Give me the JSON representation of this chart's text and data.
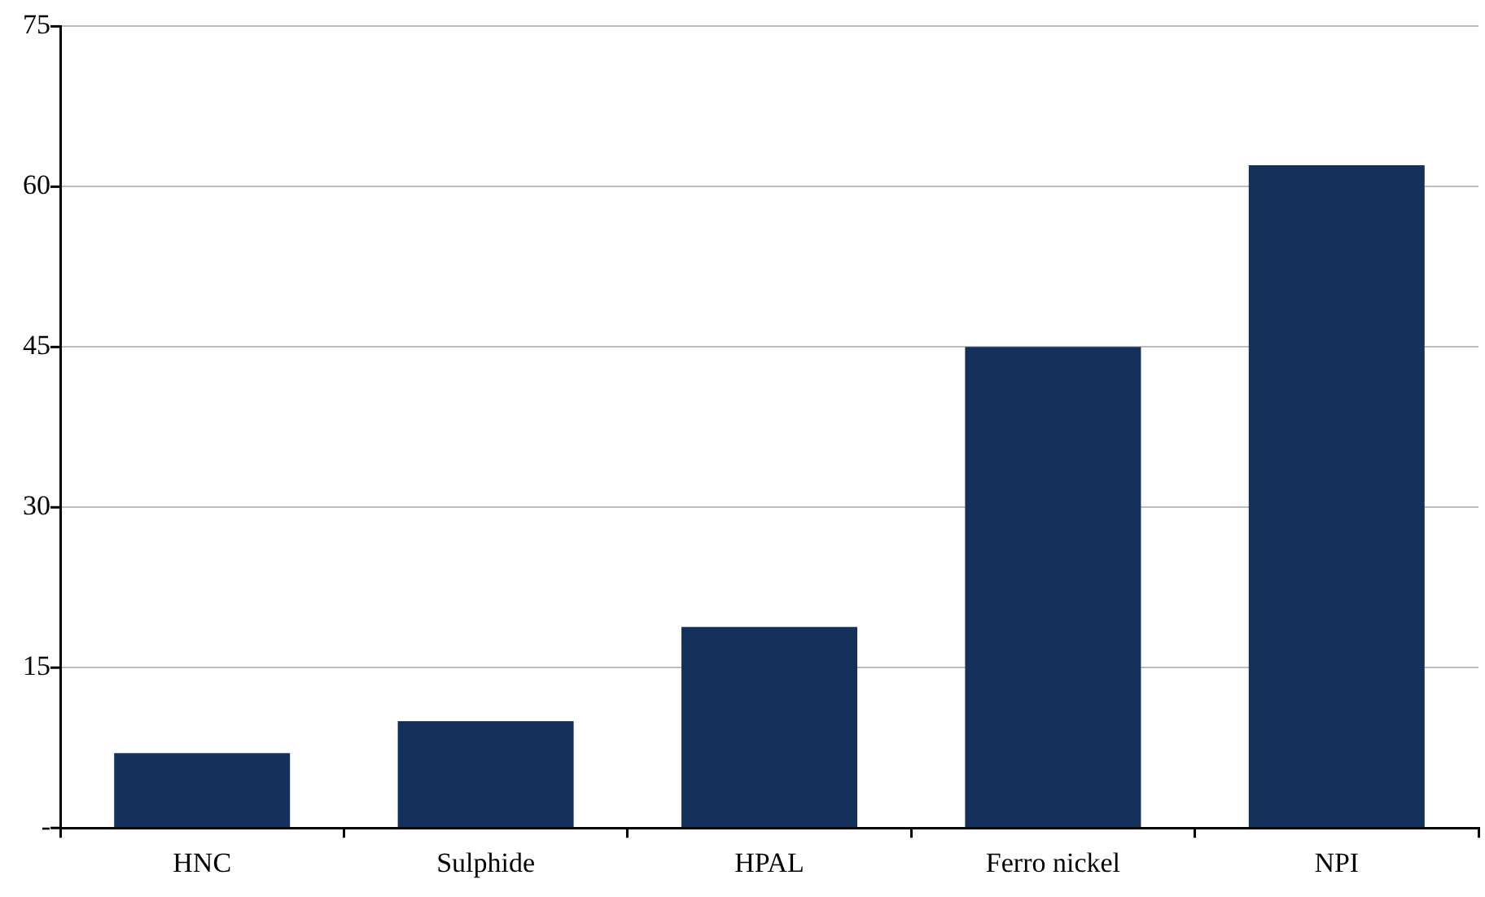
{
  "chart_data": {
    "type": "bar",
    "categories": [
      "HNC",
      "Sulphide",
      "HPAL",
      "Ferro nickel",
      "NPI"
    ],
    "values": [
      7,
      10,
      18.8,
      45,
      62
    ],
    "color": "#13315a",
    "ylim": [
      0,
      75
    ],
    "yticks": [
      {
        "value": 0,
        "label": "-"
      },
      15,
      30,
      45,
      60,
      75
    ],
    "grid": "y",
    "legend": false
  }
}
